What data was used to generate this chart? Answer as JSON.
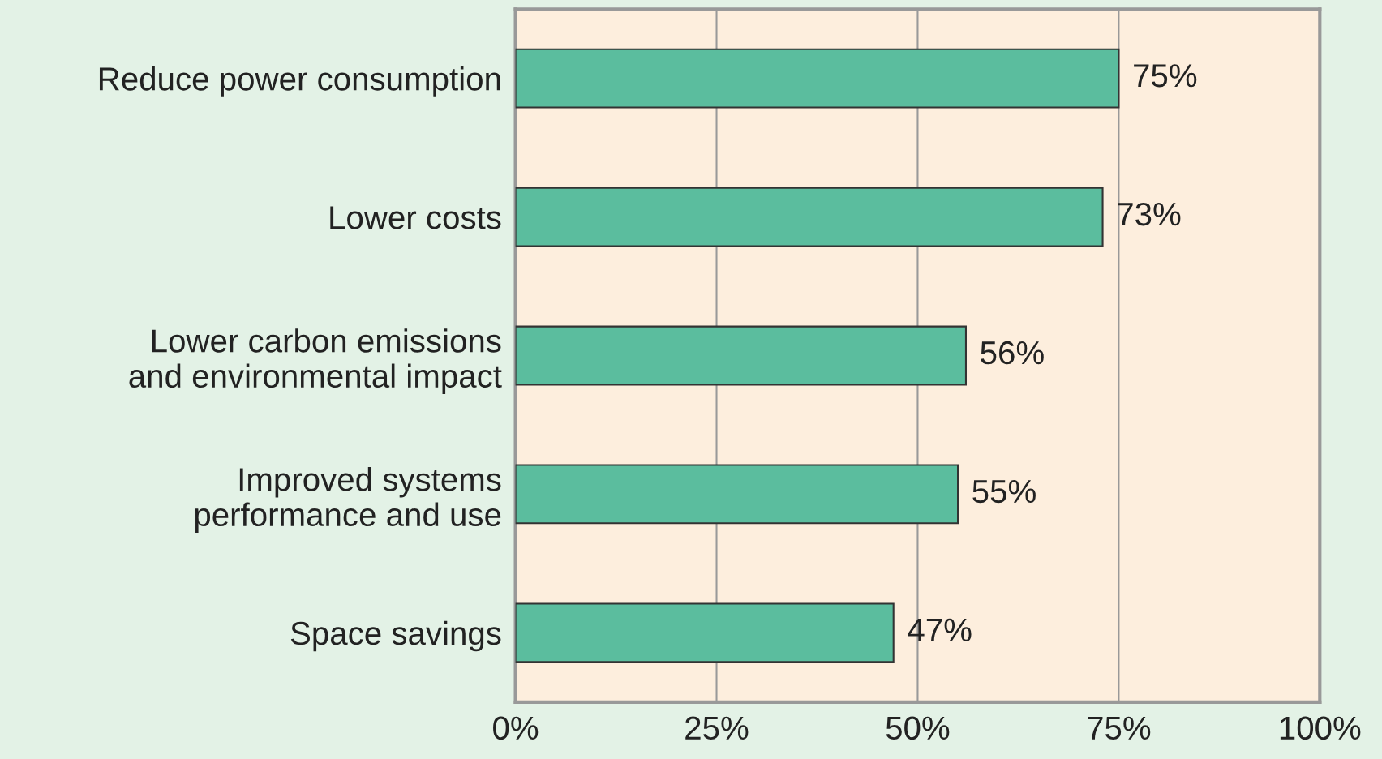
{
  "chart_data": {
    "type": "bar",
    "orientation": "horizontal",
    "categories": [
      "Reduce power consumption",
      "Lower costs",
      "Lower carbon emissions\nand environmental impact",
      "Improved systems\nperformance and use",
      "Space savings"
    ],
    "values": [
      75,
      73,
      56,
      55,
      47
    ],
    "value_labels": [
      "75%",
      "73%",
      "56%",
      "55%",
      "47%"
    ],
    "color": "#5bbd9e",
    "xlim": [
      0,
      100
    ],
    "xticks": [
      {
        "value": 0,
        "label": "0%"
      },
      {
        "value": 25,
        "label": "25%"
      },
      {
        "value": 50,
        "label": "50%"
      },
      {
        "value": 75,
        "label": "75%"
      },
      {
        "value": 100,
        "label": "100%"
      }
    ],
    "grid": "x"
  }
}
